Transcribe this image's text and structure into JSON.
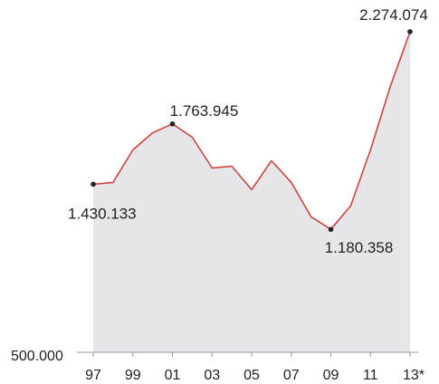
{
  "chart_data": {
    "type": "area",
    "title": "",
    "xlabel": "",
    "ylabel": "",
    "x": [
      1997,
      1998,
      1999,
      2000,
      2001,
      2002,
      2003,
      2004,
      2005,
      2006,
      2007,
      2008,
      2009,
      2010,
      2011,
      2012,
      2013
    ],
    "y": [
      1430133,
      1440000,
      1620000,
      1715000,
      1763945,
      1690000,
      1520000,
      1530000,
      1400000,
      1560000,
      1440000,
      1250000,
      1180358,
      1310000,
      1620000,
      1970000,
      2274074
    ],
    "ylim": [
      500000,
      2274074
    ],
    "y_tick_label": "500.000",
    "x_tick_labels": [
      {
        "x": 1997,
        "label": "97"
      },
      {
        "x": 1999,
        "label": "99"
      },
      {
        "x": 2001,
        "label": "01"
      },
      {
        "x": 2003,
        "label": "03"
      },
      {
        "x": 2005,
        "label": "05"
      },
      {
        "x": 2007,
        "label": "07"
      },
      {
        "x": 2009,
        "label": "09"
      },
      {
        "x": 2011,
        "label": "11"
      },
      {
        "x": 2013,
        "label": "13*"
      }
    ],
    "annotations": [
      {
        "x": 1997,
        "y": 1430133,
        "text": "1.430.133",
        "anchor": "below-right"
      },
      {
        "x": 2001,
        "y": 1763945,
        "text": "1.763.945",
        "anchor": "above"
      },
      {
        "x": 2009,
        "y": 1180358,
        "text": "1.180.358",
        "anchor": "below"
      },
      {
        "x": 2013,
        "y": 2274074,
        "text": "2.274.074",
        "anchor": "above-left"
      }
    ],
    "colors": {
      "line": "#c9463d",
      "fill": "#e6e6ea",
      "marker": "#222222",
      "axis": "#999999"
    },
    "grid": false,
    "legend": "none"
  }
}
